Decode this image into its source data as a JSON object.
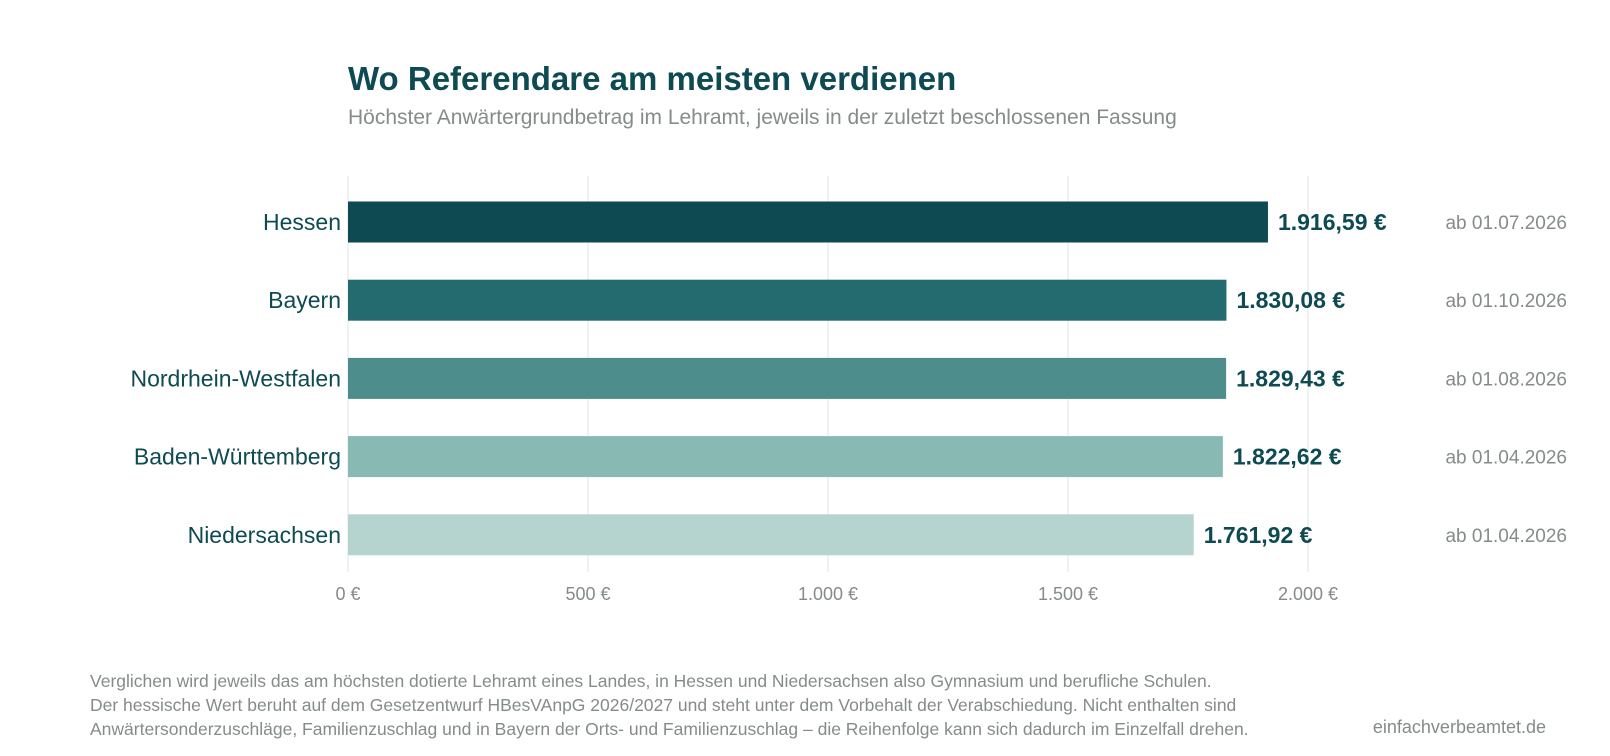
{
  "header": {
    "title": "Wo Referendare am meisten verdienen",
    "subtitle": "Höchster Anwärtergrundbetrag im Lehramt, jeweils in der zuletzt beschlossenen Fassung"
  },
  "chart_data": {
    "type": "bar",
    "orientation": "horizontal",
    "categories": [
      "Hessen",
      "Bayern",
      "Nordrhein-Westfalen",
      "Baden-Württemberg",
      "Niedersachsen"
    ],
    "values": [
      1916.59,
      1830.08,
      1829.43,
      1822.62,
      1761.92
    ],
    "value_labels": [
      "1.916,59 €",
      "1.830,08 €",
      "1.829,43 €",
      "1.822,62 €",
      "1.761,92 €"
    ],
    "dates": [
      "ab 01.07.2026",
      "ab 01.10.2026",
      "ab 01.08.2026",
      "ab 01.04.2026",
      "ab 01.04.2026"
    ],
    "bar_colors": [
      "#0d4a52",
      "#246b6f",
      "#4d8d8b",
      "#89b9b3",
      "#b5d4cf"
    ],
    "xlim": [
      0,
      2000
    ],
    "xticks": [
      0,
      500,
      1000,
      1500,
      2000
    ],
    "xtick_labels": [
      "0 €",
      "500 €",
      "1.000 €",
      "1.500 €",
      "2.000 €"
    ],
    "grid": true,
    "title": "Wo Referendare am meisten verdienen",
    "xlabel": "",
    "ylabel": ""
  },
  "footnote": {
    "lines": [
      "Verglichen wird jeweils das am höchsten dotierte Lehramt eines Landes, in Hessen und Niedersachsen also Gymnasium und berufliche Schulen.",
      "Der hessische Wert beruht auf dem Gesetzentwurf HBesVAnpG 2026/2027 und steht unter dem Vorbehalt der Verabschiedung. Nicht enthalten sind",
      "Anwärtersonderzuschläge, Familienzuschlag und in Bayern der Orts- und Familienzuschlag – die Reihenfolge kann sich dadurch im Einzelfall drehen."
    ]
  },
  "source": "einfachverbeamtet.de",
  "colors": {
    "title": "#0d4a52",
    "muted_text": "#858b8b",
    "gridline": "#ebeded"
  }
}
